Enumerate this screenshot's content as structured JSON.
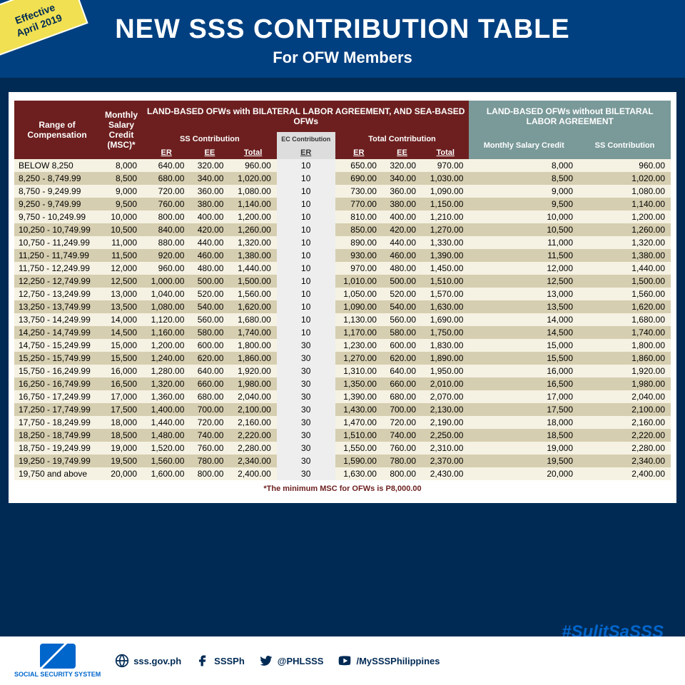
{
  "badge": {
    "line1": "Effective",
    "line2": "April 2019"
  },
  "title": "NEW SSS CONTRIBUTION TABLE",
  "subtitle": "For OFW Members",
  "headers": {
    "range": "Range of Compensation",
    "msc": "Monthly Salary Credit (MSC)*",
    "group1": "LAND-BASED OFWs with BILATERAL LABOR AGREEMENT, AND SEA-BASED OFWs",
    "group2": "LAND-BASED OFWs without BILETARAL LABOR AGREEMENT",
    "ss_contrib": "SS Contribution",
    "ec_contrib": "EC Contribution",
    "total_contrib": "Total Contribution",
    "er": "ER",
    "ee": "EE",
    "total": "Total",
    "msc2": "Monthly Salary Credit",
    "ss2": "SS Contribution"
  },
  "footnote": "*The minimum MSC for OFWs is P8,000.00",
  "hashtag": "#SulitSaSSS",
  "footer": {
    "org": "SOCIAL SECURITY SYSTEM",
    "web": "sss.gov.ph",
    "fb": "SSSPh",
    "tw": "@PHLSSS",
    "yt": "/MySSSPhilippines"
  },
  "colors": {
    "bg": "#002a54",
    "banner": "#004080",
    "maroon": "#6d1f1f",
    "teal": "#7a9999",
    "badge": "#f0e052",
    "row_even": "#f5f2e3",
    "row_odd": "#d6ceb0"
  },
  "rows": [
    {
      "range": "BELOW 8,250",
      "msc": "8,000",
      "ss_er": "640.00",
      "ss_ee": "320.00",
      "ss_t": "960.00",
      "ec": "10",
      "t_er": "650.00",
      "t_ee": "320.00",
      "t_t": "970.00",
      "msc2": "8,000",
      "ss2": "960.00"
    },
    {
      "range": "8,250   -   8,749.99",
      "msc": "8,500",
      "ss_er": "680.00",
      "ss_ee": "340.00",
      "ss_t": "1,020.00",
      "ec": "10",
      "t_er": "690.00",
      "t_ee": "340.00",
      "t_t": "1,030.00",
      "msc2": "8,500",
      "ss2": "1,020.00"
    },
    {
      "range": "8,750   -   9,249.99",
      "msc": "9,000",
      "ss_er": "720.00",
      "ss_ee": "360.00",
      "ss_t": "1,080.00",
      "ec": "10",
      "t_er": "730.00",
      "t_ee": "360.00",
      "t_t": "1,090.00",
      "msc2": "9,000",
      "ss2": "1,080.00"
    },
    {
      "range": "9,250   -   9,749.99",
      "msc": "9,500",
      "ss_er": "760.00",
      "ss_ee": "380.00",
      "ss_t": "1,140.00",
      "ec": "10",
      "t_er": "770.00",
      "t_ee": "380.00",
      "t_t": "1,150.00",
      "msc2": "9,500",
      "ss2": "1,140.00"
    },
    {
      "range": "9,750   - 10,249.99",
      "msc": "10,000",
      "ss_er": "800.00",
      "ss_ee": "400.00",
      "ss_t": "1,200.00",
      "ec": "10",
      "t_er": "810.00",
      "t_ee": "400.00",
      "t_t": "1,210.00",
      "msc2": "10,000",
      "ss2": "1,200.00"
    },
    {
      "range": "10,250  - 10,749.99",
      "msc": "10,500",
      "ss_er": "840.00",
      "ss_ee": "420.00",
      "ss_t": "1,260.00",
      "ec": "10",
      "t_er": "850.00",
      "t_ee": "420.00",
      "t_t": "1,270.00",
      "msc2": "10,500",
      "ss2": "1,260.00"
    },
    {
      "range": "10,750  - 11,249.99",
      "msc": "11,000",
      "ss_er": "880.00",
      "ss_ee": "440.00",
      "ss_t": "1,320.00",
      "ec": "10",
      "t_er": "890.00",
      "t_ee": "440.00",
      "t_t": "1,330.00",
      "msc2": "11,000",
      "ss2": "1,320.00"
    },
    {
      "range": "11,250  - 11,749.99",
      "msc": "11,500",
      "ss_er": "920.00",
      "ss_ee": "460.00",
      "ss_t": "1,380.00",
      "ec": "10",
      "t_er": "930.00",
      "t_ee": "460.00",
      "t_t": "1,390.00",
      "msc2": "11,500",
      "ss2": "1,380.00"
    },
    {
      "range": "11,750  - 12,249.99",
      "msc": "12,000",
      "ss_er": "960.00",
      "ss_ee": "480.00",
      "ss_t": "1,440.00",
      "ec": "10",
      "t_er": "970.00",
      "t_ee": "480.00",
      "t_t": "1,450.00",
      "msc2": "12,000",
      "ss2": "1,440.00"
    },
    {
      "range": "12,250  - 12,749.99",
      "msc": "12,500",
      "ss_er": "1,000.00",
      "ss_ee": "500.00",
      "ss_t": "1,500.00",
      "ec": "10",
      "t_er": "1,010.00",
      "t_ee": "500.00",
      "t_t": "1,510.00",
      "msc2": "12,500",
      "ss2": "1,500.00"
    },
    {
      "range": "12,750  - 13,249.99",
      "msc": "13,000",
      "ss_er": "1,040.00",
      "ss_ee": "520.00",
      "ss_t": "1,560.00",
      "ec": "10",
      "t_er": "1,050.00",
      "t_ee": "520.00",
      "t_t": "1,570.00",
      "msc2": "13,000",
      "ss2": "1,560.00"
    },
    {
      "range": "13,250  - 13,749.99",
      "msc": "13,500",
      "ss_er": "1,080.00",
      "ss_ee": "540.00",
      "ss_t": "1,620.00",
      "ec": "10",
      "t_er": "1,090.00",
      "t_ee": "540.00",
      "t_t": "1,630.00",
      "msc2": "13,500",
      "ss2": "1,620.00"
    },
    {
      "range": "13,750  - 14,249.99",
      "msc": "14,000",
      "ss_er": "1,120.00",
      "ss_ee": "560.00",
      "ss_t": "1,680.00",
      "ec": "10",
      "t_er": "1,130.00",
      "t_ee": "560.00",
      "t_t": "1,690.00",
      "msc2": "14,000",
      "ss2": "1,680.00"
    },
    {
      "range": "14,250  - 14,749.99",
      "msc": "14,500",
      "ss_er": "1,160.00",
      "ss_ee": "580.00",
      "ss_t": "1,740.00",
      "ec": "10",
      "t_er": "1,170.00",
      "t_ee": "580.00",
      "t_t": "1,750.00",
      "msc2": "14,500",
      "ss2": "1,740.00"
    },
    {
      "range": "14,750  - 15,249.99",
      "msc": "15,000",
      "ss_er": "1,200.00",
      "ss_ee": "600.00",
      "ss_t": "1,800.00",
      "ec": "30",
      "t_er": "1,230.00",
      "t_ee": "600.00",
      "t_t": "1,830.00",
      "msc2": "15,000",
      "ss2": "1,800.00"
    },
    {
      "range": "15,250  - 15,749.99",
      "msc": "15,500",
      "ss_er": "1,240.00",
      "ss_ee": "620.00",
      "ss_t": "1,860.00",
      "ec": "30",
      "t_er": "1,270.00",
      "t_ee": "620.00",
      "t_t": "1,890.00",
      "msc2": "15,500",
      "ss2": "1,860.00"
    },
    {
      "range": "15,750  - 16,249.99",
      "msc": "16,000",
      "ss_er": "1,280.00",
      "ss_ee": "640.00",
      "ss_t": "1,920.00",
      "ec": "30",
      "t_er": "1,310.00",
      "t_ee": "640.00",
      "t_t": "1,950.00",
      "msc2": "16,000",
      "ss2": "1,920.00"
    },
    {
      "range": "16,250  - 16,749.99",
      "msc": "16,500",
      "ss_er": "1,320.00",
      "ss_ee": "660.00",
      "ss_t": "1,980.00",
      "ec": "30",
      "t_er": "1,350.00",
      "t_ee": "660.00",
      "t_t": "2,010.00",
      "msc2": "16,500",
      "ss2": "1,980.00"
    },
    {
      "range": "16,750  - 17,249.99",
      "msc": "17,000",
      "ss_er": "1,360.00",
      "ss_ee": "680.00",
      "ss_t": "2,040.00",
      "ec": "30",
      "t_er": "1,390.00",
      "t_ee": "680.00",
      "t_t": "2,070.00",
      "msc2": "17,000",
      "ss2": "2,040.00"
    },
    {
      "range": "17,250  - 17,749.99",
      "msc": "17,500",
      "ss_er": "1,400.00",
      "ss_ee": "700.00",
      "ss_t": "2,100.00",
      "ec": "30",
      "t_er": "1,430.00",
      "t_ee": "700.00",
      "t_t": "2,130.00",
      "msc2": "17,500",
      "ss2": "2,100.00"
    },
    {
      "range": "17,750  - 18,249.99",
      "msc": "18,000",
      "ss_er": "1,440.00",
      "ss_ee": "720.00",
      "ss_t": "2,160.00",
      "ec": "30",
      "t_er": "1,470.00",
      "t_ee": "720.00",
      "t_t": "2,190.00",
      "msc2": "18,000",
      "ss2": "2,160.00"
    },
    {
      "range": "18,250  - 18,749.99",
      "msc": "18,500",
      "ss_er": "1,480.00",
      "ss_ee": "740.00",
      "ss_t": "2,220.00",
      "ec": "30",
      "t_er": "1,510.00",
      "t_ee": "740.00",
      "t_t": "2,250.00",
      "msc2": "18,500",
      "ss2": "2,220.00"
    },
    {
      "range": "18,750  - 19,249.99",
      "msc": "19,000",
      "ss_er": "1,520.00",
      "ss_ee": "760.00",
      "ss_t": "2,280.00",
      "ec": "30",
      "t_er": "1,550.00",
      "t_ee": "760.00",
      "t_t": "2,310.00",
      "msc2": "19,000",
      "ss2": "2,280.00"
    },
    {
      "range": "19,250  - 19,749.99",
      "msc": "19,500",
      "ss_er": "1,560.00",
      "ss_ee": "780.00",
      "ss_t": "2,340.00",
      "ec": "30",
      "t_er": "1,590.00",
      "t_ee": "780.00",
      "t_t": "2,370.00",
      "msc2": "19,500",
      "ss2": "2,340.00"
    },
    {
      "range": "19,750 and above",
      "msc": "20,000",
      "ss_er": "1,600.00",
      "ss_ee": "800.00",
      "ss_t": "2,400.00",
      "ec": "30",
      "t_er": "1,630.00",
      "t_ee": "800.00",
      "t_t": "2,430.00",
      "msc2": "20,000",
      "ss2": "2,400.00"
    }
  ]
}
